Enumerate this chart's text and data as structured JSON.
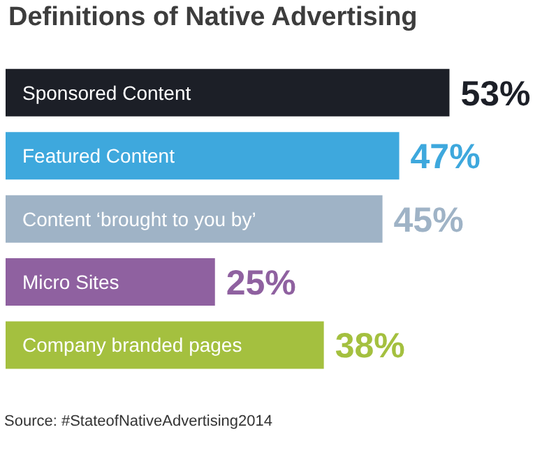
{
  "chart_data": {
    "type": "bar",
    "orientation": "horizontal",
    "title": "Definitions of Native Advertising",
    "categories": [
      "Sponsored Content",
      "Featured Content",
      "Content ‘brought to you by’",
      "Micro Sites",
      "Company branded pages"
    ],
    "values": [
      53,
      47,
      45,
      25,
      38
    ],
    "colors": [
      "#1c1f27",
      "#3ea8dd",
      "#9fb3c6",
      "#8f61a0",
      "#a4c03f"
    ],
    "value_labels": [
      "53%",
      "47%",
      "45%",
      "25%",
      "38%"
    ],
    "annotations": [
      "Source: #StateofNativeAdvertising2014"
    ]
  }
}
